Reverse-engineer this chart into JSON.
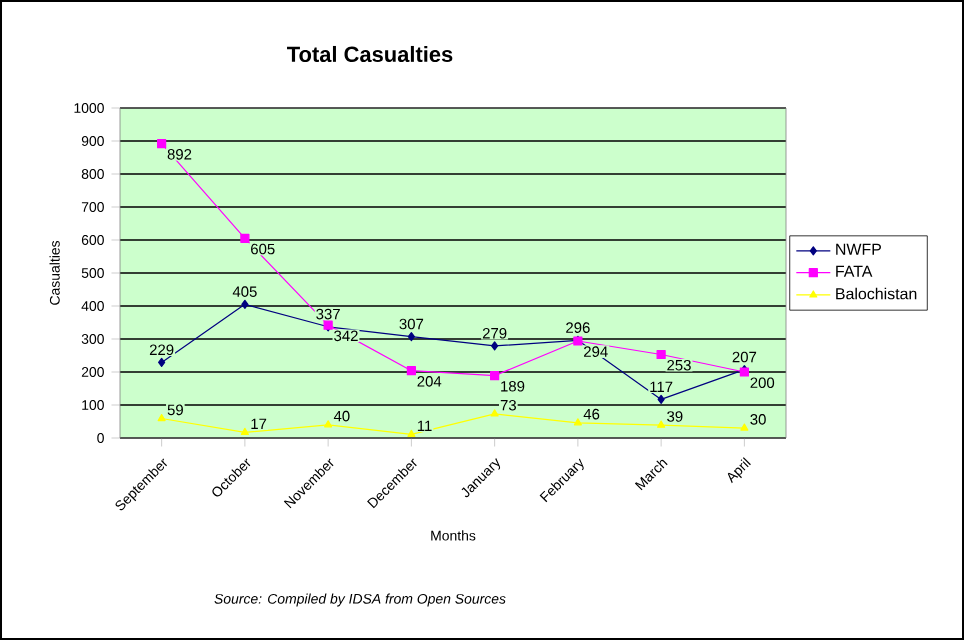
{
  "chart_data": {
    "type": "line",
    "title": "Total Casualties",
    "xlabel": "Months",
    "ylabel": "Casualties",
    "annotations": [
      "Source: Compiled by IDSA from Open Sources"
    ],
    "categories": [
      "September",
      "October",
      "November",
      "December",
      "January",
      "February",
      "March",
      "April"
    ],
    "series": [
      {
        "name": "NWFP",
        "color": "#000080",
        "marker": "diamond",
        "values": [
          229,
          405,
          337,
          307,
          279,
          296,
          117,
          207
        ]
      },
      {
        "name": "FATA",
        "color": "#ff00ff",
        "marker": "square",
        "values": [
          892,
          605,
          342,
          204,
          189,
          294,
          253,
          200
        ]
      },
      {
        "name": "Balochistan",
        "color": "#ffff00",
        "marker": "triangle",
        "values": [
          59,
          17,
          40,
          11,
          73,
          46,
          39,
          30
        ]
      }
    ],
    "ylim": [
      0,
      1000
    ],
    "yticks": [
      0,
      100,
      200,
      300,
      400,
      500,
      600,
      700,
      800,
      900,
      1000
    ],
    "grid": "y",
    "legend": "right",
    "data_labels": true,
    "line_style": "solid"
  }
}
